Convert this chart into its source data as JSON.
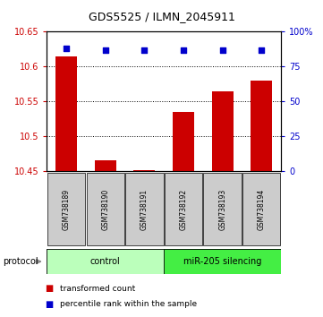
{
  "title": "GDS5525 / ILMN_2045911",
  "samples": [
    "GSM738189",
    "GSM738190",
    "GSM738191",
    "GSM738192",
    "GSM738193",
    "GSM738194"
  ],
  "red_values": [
    10.615,
    10.465,
    10.451,
    10.535,
    10.565,
    10.58
  ],
  "blue_values": [
    88,
    87,
    87,
    87,
    87,
    87
  ],
  "ylim_left": [
    10.45,
    10.65
  ],
  "ylim_right": [
    0,
    100
  ],
  "yticks_left": [
    10.45,
    10.5,
    10.55,
    10.6,
    10.65
  ],
  "yticks_right": [
    0,
    25,
    50,
    75,
    100
  ],
  "ytick_labels_left": [
    "10.45",
    "10.5",
    "10.55",
    "10.6",
    "10.65"
  ],
  "ytick_labels_right": [
    "0",
    "25",
    "50",
    "75",
    "100%"
  ],
  "grid_lines": [
    10.5,
    10.55,
    10.6
  ],
  "bar_color": "#cc0000",
  "scatter_color": "#0000cc",
  "bar_width": 0.55,
  "protocols": [
    {
      "label": "control",
      "samples": [
        0,
        1,
        2
      ],
      "color": "#bbffbb"
    },
    {
      "label": "miR-205 silencing",
      "samples": [
        3,
        4,
        5
      ],
      "color": "#44ee44"
    }
  ],
  "protocol_label": "protocol",
  "legend_items": [
    {
      "label": "transformed count",
      "color": "#cc0000"
    },
    {
      "label": "percentile rank within the sample",
      "color": "#0000cc"
    }
  ],
  "sample_box_color": "#cccccc",
  "background_color": "#ffffff"
}
